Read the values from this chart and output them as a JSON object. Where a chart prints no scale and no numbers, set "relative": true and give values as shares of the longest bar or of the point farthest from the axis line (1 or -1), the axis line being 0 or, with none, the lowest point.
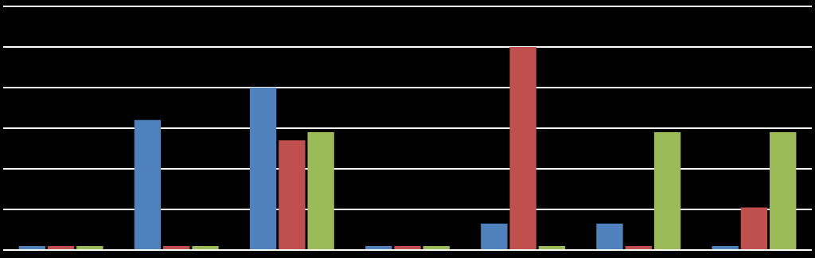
{
  "chart_data": {
    "type": "bar",
    "relative": true,
    "grid": "y",
    "categories": [
      null,
      null,
      null,
      null,
      null,
      null,
      null
    ],
    "series": [
      {
        "color": "#4f81bd",
        "values": [
          0.02,
          0.64,
          0.8,
          0.02,
          0.13,
          0.13,
          0.02
        ]
      },
      {
        "color": "#c0504d",
        "values": [
          0.02,
          0.02,
          0.54,
          0.02,
          1,
          0.02,
          0.21
        ]
      },
      {
        "color": "#9bbb59",
        "values": [
          0.02,
          0.02,
          0.58,
          0.02,
          0.02,
          0.58,
          0.58
        ]
      }
    ]
  }
}
